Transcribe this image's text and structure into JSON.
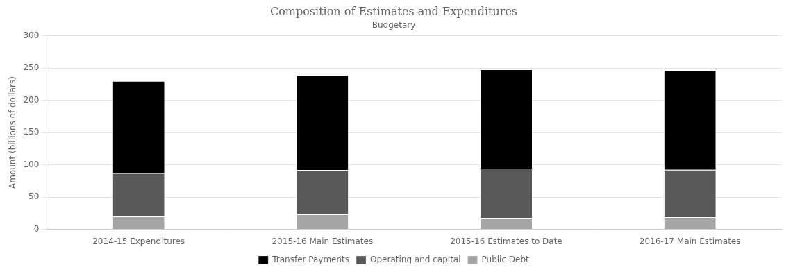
{
  "chart_data": {
    "type": "bar",
    "stacked": true,
    "title": "Composition of Estimates and Expenditures",
    "subtitle": "Budgetary",
    "y_label": "Amount (billions of dollars)",
    "categories": [
      "2014-15 Expenditures",
      "2015-16 Main Estimates",
      "2015-16 Estimates to Date",
      "2016-17 Main Estimates"
    ],
    "series": [
      {
        "name": "Public Debt",
        "color": "#a6a6a6",
        "values": [
          20.1,
          23.3,
          17.9,
          18.8
        ]
      },
      {
        "name": "Operating and capital",
        "color": "#595959",
        "values": [
          67.0,
          68.5,
          76.2,
          73.5
        ]
      },
      {
        "name": "Transfer Payments",
        "color": "#000000",
        "values": [
          142.9,
          147.2,
          153.9,
          154.7
        ]
      }
    ],
    "ylim": [
      0,
      300
    ],
    "yticks": [
      0,
      50,
      100,
      150,
      200,
      250,
      300
    ],
    "grid": true,
    "legend": "bottom"
  }
}
